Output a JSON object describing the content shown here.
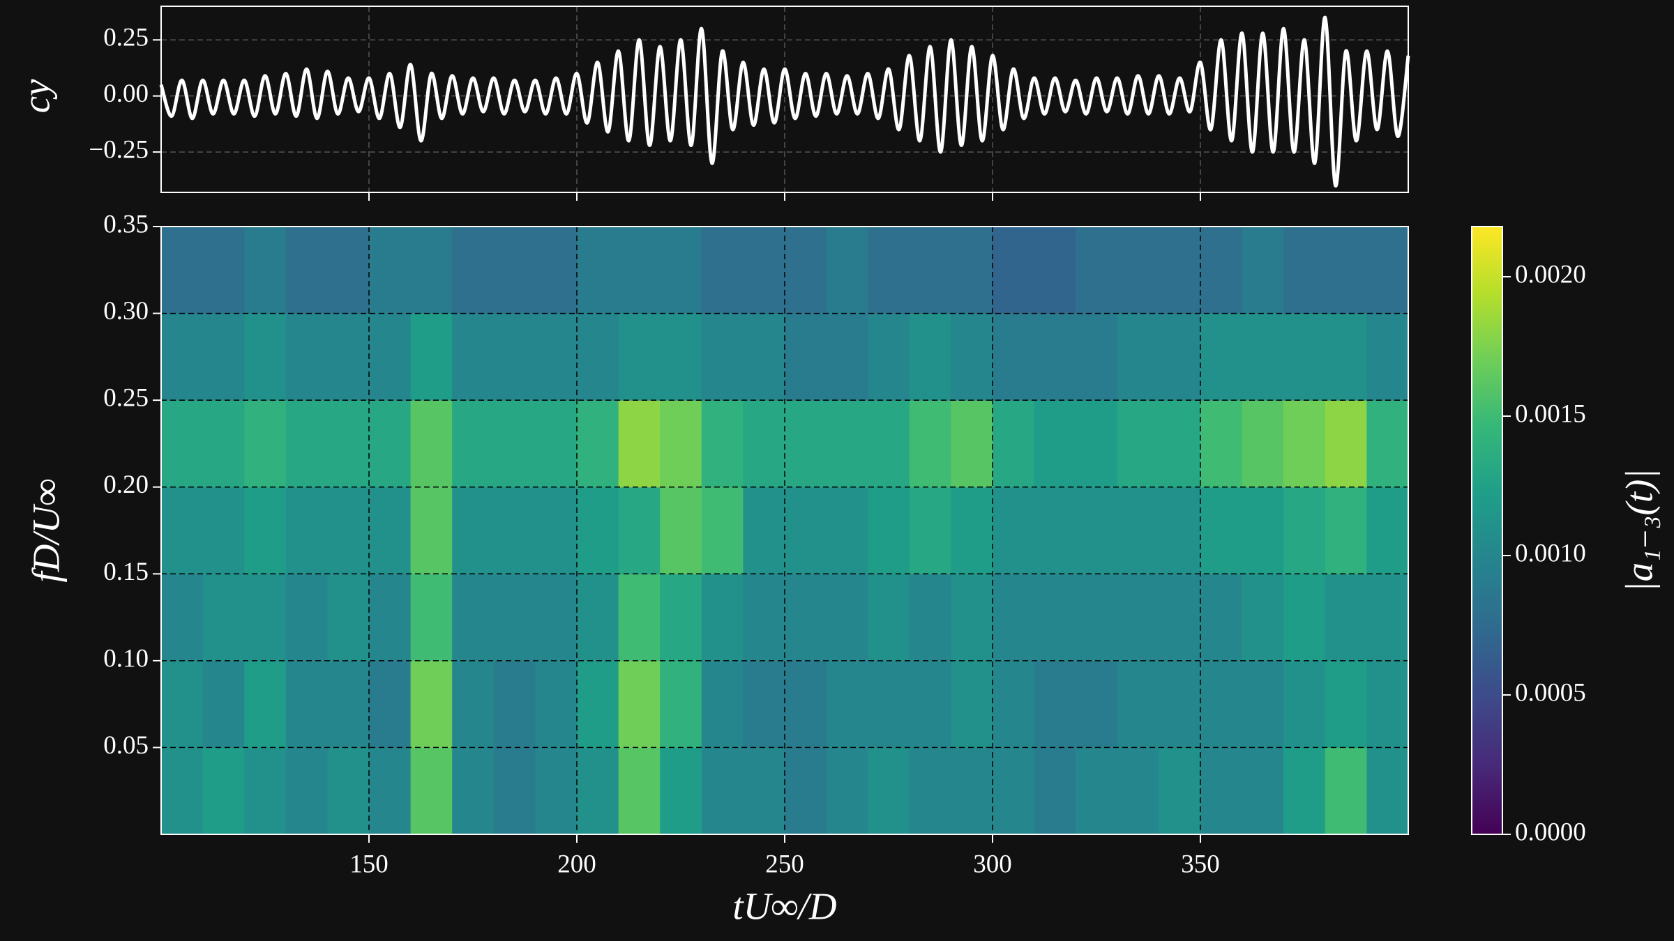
{
  "chart_data": [
    {
      "type": "line",
      "ylabel": "cy",
      "xlim": [
        100,
        400
      ],
      "xticks": [
        150,
        200,
        250,
        300,
        350
      ],
      "ylim": [
        -0.43,
        0.4
      ],
      "yticks": [
        {
          "value": -0.25,
          "label": "−0.25"
        },
        {
          "value": 0,
          "label": "0.00"
        },
        0.25
      ],
      "grid": true,
      "x": [
        100,
        102.5,
        105,
        107.5,
        110,
        112.5,
        115,
        117.5,
        120,
        122.5,
        125,
        127.5,
        130,
        132.5,
        135,
        137.5,
        140,
        142.5,
        145,
        147.5,
        150,
        152.5,
        155,
        157.5,
        160,
        162.5,
        165,
        167.5,
        170,
        172.5,
        175,
        177.5,
        180,
        182.5,
        185,
        187.5,
        190,
        192.5,
        195,
        197.5,
        200,
        202.5,
        205,
        207.5,
        210,
        212.5,
        215,
        217.5,
        220,
        222.5,
        225,
        227.5,
        230,
        232.5,
        235,
        237.5,
        240,
        242.5,
        245,
        247.5,
        250,
        252.5,
        255,
        257.5,
        260,
        262.5,
        265,
        267.5,
        270,
        272.5,
        275,
        277.5,
        280,
        282.5,
        285,
        287.5,
        290,
        292.5,
        295,
        297.5,
        300,
        302.5,
        305,
        307.5,
        310,
        312.5,
        315,
        317.5,
        320,
        322.5,
        325,
        327.5,
        330,
        332.5,
        335,
        337.5,
        340,
        342.5,
        345,
        347.5,
        350,
        352.5,
        355,
        357.5,
        360,
        362.5,
        365,
        367.5,
        370,
        372.5,
        375,
        377.5,
        380,
        382.5,
        385,
        387.5,
        390,
        392.5,
        395,
        397.5,
        400
      ],
      "series": [
        {
          "color": "#ffffff",
          "values": [
            0.05,
            -0.09,
            0.07,
            -0.1,
            0.07,
            -0.08,
            0.07,
            -0.08,
            0.07,
            -0.09,
            0.09,
            -0.08,
            0.1,
            -0.09,
            0.12,
            -0.1,
            0.11,
            -0.08,
            0.08,
            -0.07,
            0.08,
            -0.1,
            0.1,
            -0.14,
            0.14,
            -0.2,
            0.1,
            -0.1,
            0.09,
            -0.08,
            0.08,
            -0.07,
            0.08,
            -0.08,
            0.07,
            -0.07,
            0.07,
            -0.08,
            0.08,
            -0.08,
            0.1,
            -0.12,
            0.15,
            -0.16,
            0.2,
            -0.2,
            0.25,
            -0.22,
            0.22,
            -0.2,
            0.25,
            -0.22,
            0.3,
            -0.3,
            0.2,
            -0.15,
            0.15,
            -0.13,
            0.12,
            -0.12,
            0.12,
            -0.1,
            0.1,
            -0.09,
            0.1,
            -0.08,
            0.09,
            -0.08,
            0.1,
            -0.1,
            0.12,
            -0.15,
            0.18,
            -0.2,
            0.22,
            -0.25,
            0.25,
            -0.22,
            0.22,
            -0.2,
            0.18,
            -0.15,
            0.12,
            -0.1,
            0.08,
            -0.08,
            0.08,
            -0.07,
            0.07,
            -0.08,
            0.08,
            -0.07,
            0.08,
            -0.08,
            0.09,
            -0.08,
            0.09,
            -0.08,
            0.08,
            -0.07,
            0.15,
            -0.15,
            0.25,
            -0.2,
            0.28,
            -0.25,
            0.28,
            -0.25,
            0.3,
            -0.25,
            0.25,
            -0.3,
            0.35,
            -0.4,
            0.2,
            -0.2,
            0.2,
            -0.15,
            0.2,
            -0.18,
            0.18
          ]
        }
      ]
    },
    {
      "type": "heatmap",
      "xlabel": "tU∞/D",
      "ylabel": "fD/U∞",
      "colormap": "viridis",
      "xlim": [
        100,
        400
      ],
      "xticks": [
        150,
        200,
        250,
        300,
        350
      ],
      "ylim": [
        0,
        0.35
      ],
      "yticks": [
        0.05,
        {
          "value": 0.1,
          "label": "0.10"
        },
        0.15,
        {
          "value": 0.2,
          "label": "0.20"
        },
        0.25,
        {
          "value": 0.3,
          "label": "0.30"
        },
        0.35
      ],
      "grid": true,
      "x": [
        105,
        115,
        125,
        135,
        145,
        155,
        165,
        175,
        185,
        195,
        205,
        215,
        225,
        235,
        245,
        255,
        265,
        275,
        285,
        295,
        305,
        315,
        325,
        335,
        345,
        355,
        365,
        375,
        385,
        395
      ],
      "y": [
        0.025,
        0.075,
        0.125,
        0.175,
        0.225,
        0.275,
        0.325
      ],
      "z": [
        [
          0.0011,
          0.0012,
          0.0011,
          0.001,
          0.0011,
          0.001,
          0.0016,
          0.001,
          0.0009,
          0.001,
          0.0011,
          0.0016,
          0.0012,
          0.001,
          0.001,
          0.0009,
          0.001,
          0.0011,
          0.001,
          0.001,
          0.001,
          0.0009,
          0.001,
          0.001,
          0.0011,
          0.001,
          0.001,
          0.0012,
          0.0015,
          0.0011
        ],
        [
          0.0011,
          0.001,
          0.0012,
          0.001,
          0.001,
          0.0009,
          0.0017,
          0.001,
          0.0009,
          0.001,
          0.0012,
          0.0017,
          0.0014,
          0.001,
          0.0009,
          0.0009,
          0.001,
          0.001,
          0.001,
          0.0011,
          0.001,
          0.0009,
          0.0009,
          0.001,
          0.001,
          0.001,
          0.001,
          0.0011,
          0.0012,
          0.0011
        ],
        [
          0.001,
          0.0011,
          0.0011,
          0.001,
          0.0011,
          0.001,
          0.0015,
          0.001,
          0.001,
          0.001,
          0.0011,
          0.0015,
          0.0013,
          0.0011,
          0.001,
          0.001,
          0.001,
          0.0011,
          0.001,
          0.0011,
          0.001,
          0.001,
          0.001,
          0.001,
          0.001,
          0.001,
          0.0011,
          0.0012,
          0.0011,
          0.0011
        ],
        [
          0.0011,
          0.0011,
          0.0012,
          0.0011,
          0.0011,
          0.0011,
          0.0016,
          0.0011,
          0.0011,
          0.0011,
          0.0012,
          0.0013,
          0.0016,
          0.0015,
          0.0011,
          0.0011,
          0.0011,
          0.0012,
          0.0013,
          0.0012,
          0.0011,
          0.0011,
          0.0011,
          0.0011,
          0.0011,
          0.0012,
          0.0012,
          0.0013,
          0.0014,
          0.0012
        ],
        [
          0.0013,
          0.0013,
          0.0014,
          0.0013,
          0.0013,
          0.0013,
          0.0016,
          0.0013,
          0.0013,
          0.0013,
          0.0014,
          0.0018,
          0.0017,
          0.0014,
          0.0013,
          0.0013,
          0.0013,
          0.0013,
          0.0015,
          0.0016,
          0.0013,
          0.0012,
          0.0012,
          0.0013,
          0.0013,
          0.0015,
          0.0016,
          0.0017,
          0.0018,
          0.0014
        ],
        [
          0.001,
          0.001,
          0.0011,
          0.001,
          0.001,
          0.001,
          0.0012,
          0.001,
          0.001,
          0.001,
          0.001,
          0.0011,
          0.0011,
          0.001,
          0.001,
          0.0009,
          0.0009,
          0.001,
          0.0011,
          0.001,
          0.0009,
          0.0009,
          0.0009,
          0.001,
          0.001,
          0.0011,
          0.0011,
          0.0011,
          0.0011,
          0.001
        ],
        [
          0.0008,
          0.0008,
          0.0009,
          0.0008,
          0.0008,
          0.0009,
          0.0009,
          0.0008,
          0.0008,
          0.0008,
          0.0009,
          0.0009,
          0.0009,
          0.0008,
          0.0008,
          0.0008,
          0.0009,
          0.0008,
          0.0008,
          0.0008,
          0.0007,
          0.0007,
          0.0008,
          0.0008,
          0.0008,
          0.0008,
          0.0009,
          0.0008,
          0.0008,
          0.0008
        ]
      ],
      "colorbar": {
        "label": "|a₁₋₃(t)|",
        "lim": [
          0,
          0.00218
        ],
        "ticks": [
          {
            "value": 0,
            "label": "0.0000"
          },
          {
            "value": 0.0005,
            "label": "0.0005"
          },
          {
            "value": 0.001,
            "label": "0.0010"
          },
          {
            "value": 0.0015,
            "label": "0.0015"
          },
          {
            "value": 0.002,
            "label": "0.0020"
          }
        ]
      }
    }
  ]
}
